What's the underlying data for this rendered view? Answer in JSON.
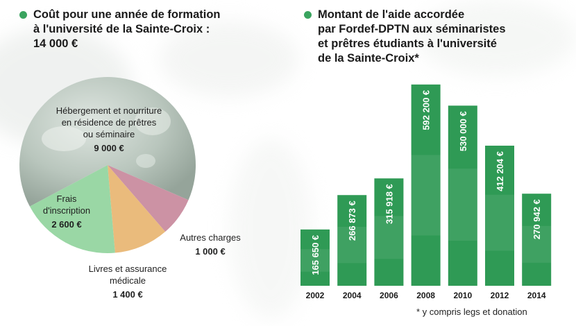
{
  "left_title": {
    "lines": [
      "Coût pour une année de formation",
      "à l'université de la Sainte-Croix :",
      "14 000 €"
    ]
  },
  "right_title": {
    "lines": [
      "Montant de l'aide accordée",
      "par Fordef-DPTN aux séminaristes",
      "et prêtres étudiants à l'université",
      "de la Sainte-Croix*"
    ]
  },
  "colors": {
    "accent_green": "#3aa45f",
    "bar_green": "#2f9a55",
    "pie_light_green": "#8fd39b",
    "pie_pink": "#c6869a",
    "pie_orange": "#e8b46e",
    "globe_grey": "#b3bfb6"
  },
  "footnote": "* y compris legs et donation",
  "chart_data": [
    {
      "type": "pie",
      "title": "Coût pour une année de formation à l'université de la Sainte-Croix : 14 000 €",
      "slices": [
        {
          "label": "Hébergement et nourriture en résidence de prêtres ou séminaire",
          "label_lines": [
            "Hébergement et nourriture",
            "en résidence de prêtres",
            "ou séminaire"
          ],
          "value": 9000,
          "value_label": "9 000 €"
        },
        {
          "label": "Autres charges",
          "label_lines": [
            "Autres charges"
          ],
          "value": 1000,
          "value_label": "1 000 €"
        },
        {
          "label": "Livres et assurance médicale",
          "label_lines": [
            "Livres et assurance",
            "médicale"
          ],
          "value": 1400,
          "value_label": "1 400 €"
        },
        {
          "label": "Frais d'inscription",
          "label_lines": [
            "Frais",
            "d'inscription"
          ],
          "value": 2600,
          "value_label": "2 600 €"
        }
      ]
    },
    {
      "type": "bar",
      "title": "Montant de l'aide accordée par Fordef-DPTN aux séminaristes et prêtres étudiants à l'université de la Sainte-Croix*",
      "categories": [
        "2002",
        "2004",
        "2006",
        "2008",
        "2010",
        "2012",
        "2014"
      ],
      "values": [
        165650,
        266873,
        315918,
        592200,
        530000,
        412204,
        270942
      ],
      "value_labels": [
        "165 650 €",
        "266 873 €",
        "315 918 €",
        "592 200 €",
        "530 000 €",
        "412 204 €",
        "270 942 €"
      ],
      "ylim": [
        0,
        600000
      ]
    }
  ]
}
